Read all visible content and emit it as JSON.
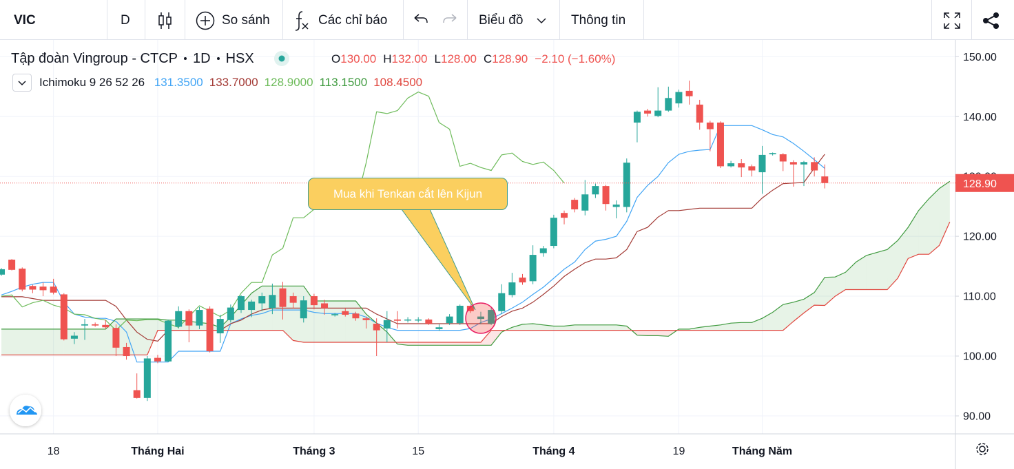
{
  "toolbar": {
    "symbol": "VIC",
    "interval": "D",
    "compare": "So sánh",
    "indicators": "Các chỉ báo",
    "chart_type": "Biểu đồ",
    "info": "Thông tin"
  },
  "chart_data": {
    "type": "candlestick",
    "title": "Tập đoàn Vingroup - CTCP",
    "interval": "1D",
    "exchange": "HSX",
    "ohlc_legend": [
      {
        "key": "O",
        "value": "130.00"
      },
      {
        "key": "H",
        "value": "132.00"
      },
      {
        "key": "L",
        "value": "128.00"
      },
      {
        "key": "C",
        "value": "128.90"
      }
    ],
    "change": "−2.10 (−1.60%)",
    "indicator": {
      "name": "Ichimoku 9 26 52 26",
      "values": [
        "131.3500",
        "133.7000",
        "128.9000",
        "113.1500",
        "108.4500"
      ]
    },
    "annotation": "Mua khi Tenkan cắt lên Kijun",
    "categories": [
      null,
      null,
      null,
      null,
      null,
      "18",
      null,
      null,
      null,
      null,
      null,
      null,
      null,
      null,
      null,
      "Tháng Hai",
      null,
      null,
      null,
      null,
      null,
      null,
      null,
      null,
      null,
      null,
      null,
      null,
      null,
      null,
      "Tháng 3",
      null,
      null,
      null,
      null,
      null,
      null,
      null,
      null,
      null,
      "15",
      null,
      null,
      null,
      null,
      null,
      null,
      null,
      null,
      null,
      null,
      null,
      null,
      "Tháng 4",
      null,
      null,
      null,
      null,
      null,
      null,
      null,
      null,
      null,
      null,
      null,
      "19",
      null,
      null,
      null,
      null,
      null,
      null,
      null,
      "Tháng Năm",
      null,
      null,
      null,
      null,
      null,
      null,
      null,
      null,
      null,
      null,
      null,
      null,
      null,
      null,
      null,
      null,
      null,
      null
    ],
    "open": [
      113.6,
      116.1,
      114.6,
      111.7,
      111.6,
      111.6,
      110.3,
      102.9,
      105.1,
      105.3,
      105.2,
      104.7,
      101.5,
      94.3,
      93.0,
      99.7,
      99.1,
      104.9,
      107.5,
      105.1,
      107.9,
      103.8,
      106.0,
      107.7,
      107.7,
      108.8,
      108.0,
      111.3,
      110.0,
      106.3,
      110.0,
      108.8,
      106.8,
      107.5,
      107.1,
      106.3,
      105.4,
      104.6,
      106.1,
      106.0,
      106.0,
      106.1,
      104.5,
      105.5,
      105.5,
      108.4,
      106.2,
      105.4,
      107.5,
      110.2,
      113.1,
      112.5,
      117.2,
      118.4,
      123.9,
      126.1,
      124.3,
      127.0,
      128.4,
      124.9,
      124.9,
      139.0,
      141.0,
      140.1,
      141.0,
      142.2,
      144.3,
      142.0,
      139.0,
      139.0,
      131.7,
      132.2,
      131.7,
      130.7,
      133.7,
      133.7,
      132.4,
      132.0,
      132.4,
      130.0,
      null,
      null,
      null,
      null,
      null,
      null,
      null,
      null,
      null,
      null,
      null,
      null
    ],
    "high": [
      114.7,
      116.2,
      114.8,
      111.9,
      112.3,
      112.9,
      110.5,
      104.0,
      106.2,
      105.6,
      106.0,
      105.3,
      102.2,
      97.1,
      100.0,
      100.2,
      106.1,
      108.3,
      107.8,
      108.2,
      108.3,
      106.9,
      108.6,
      110.2,
      109.4,
      110.6,
      112.1,
      112.4,
      110.6,
      110.0,
      110.4,
      109.4,
      107.2,
      108.0,
      107.4,
      106.6,
      106.3,
      107.5,
      107.5,
      106.5,
      106.5,
      106.3,
      105.3,
      107.0,
      108.6,
      108.6,
      107.4,
      108.2,
      112.0,
      113.9,
      113.7,
      118.5,
      118.4,
      123.6,
      124.3,
      126.4,
      129.4,
      128.8,
      128.6,
      126.0,
      133.0,
      141.0,
      141.3,
      144.9,
      145.0,
      144.5,
      146.0,
      142.8,
      139.3,
      139.2,
      132.6,
      132.9,
      132.0,
      135.1,
      134.0,
      133.9,
      132.7,
      132.6,
      133.2,
      132.0,
      null,
      null,
      null,
      null,
      null,
      null,
      null,
      null,
      null,
      null,
      null,
      null
    ],
    "low": [
      113.4,
      114.3,
      110.8,
      110.5,
      110.0,
      110.3,
      102.6,
      102.0,
      102.7,
      104.9,
      104.5,
      100.0,
      99.4,
      92.9,
      92.5,
      98.8,
      99.0,
      104.6,
      102.3,
      104.5,
      100.6,
      102.2,
      105.6,
      107.2,
      106.5,
      107.5,
      107.0,
      106.1,
      108.0,
      105.6,
      107.8,
      106.9,
      106.6,
      106.6,
      105.9,
      104.6,
      100.0,
      102.3,
      104.6,
      105.6,
      105.6,
      105.2,
      104.2,
      105.2,
      105.2,
      107.2,
      105.3,
      105.2,
      107.0,
      109.8,
      111.9,
      112.0,
      116.6,
      118.0,
      122.0,
      124.0,
      123.5,
      126.4,
      124.3,
      123.0,
      124.0,
      135.7,
      140.0,
      139.9,
      140.8,
      141.5,
      142.0,
      137.8,
      134.2,
      131.4,
      131.5,
      129.9,
      130.0,
      127.1,
      133.5,
      130.9,
      128.3,
      128.4,
      130.0,
      128.0,
      null,
      null,
      null,
      null,
      null,
      null,
      null,
      null,
      null,
      null,
      null,
      null
    ],
    "close": [
      114.5,
      114.4,
      111.1,
      111.1,
      111.0,
      110.6,
      102.8,
      103.4,
      105.3,
      105.1,
      104.8,
      101.4,
      100.0,
      93.0,
      99.6,
      99.1,
      105.9,
      107.5,
      105.1,
      107.7,
      100.8,
      106.2,
      108.1,
      110.0,
      109.1,
      110.0,
      110.2,
      108.2,
      108.9,
      109.3,
      108.5,
      108.0,
      107.0,
      106.9,
      106.3,
      106.0,
      104.3,
      106.0,
      105.9,
      106.1,
      106.1,
      105.4,
      104.8,
      106.6,
      108.4,
      107.5,
      106.6,
      107.7,
      110.5,
      112.3,
      112.3,
      116.9,
      118.0,
      123.1,
      123.1,
      124.5,
      127.0,
      128.4,
      125.4,
      125.3,
      132.3,
      140.8,
      140.5,
      141.0,
      143.1,
      144.1,
      143.4,
      139.0,
      137.9,
      131.7,
      132.2,
      131.5,
      131.0,
      133.6,
      133.9,
      132.5,
      132.0,
      132.4,
      131.0,
      128.9,
      null,
      null,
      null,
      null,
      null,
      null,
      null,
      null,
      null,
      null,
      null,
      null
    ],
    "up_color": "#26a69a",
    "down_color": "#ef5350",
    "series": [
      {
        "color": "#42a5f5",
        "values": [
          110.2,
          110.8,
          111.5,
          112.0,
          112.3,
          112.3,
          109.0,
          107.0,
          106.5,
          106.3,
          106.3,
          105.8,
          104.0,
          99.0,
          99.0,
          99.0,
          99.0,
          100.8,
          100.8,
          100.8,
          100.8,
          100.8,
          105.4,
          106.2,
          106.8,
          107.1,
          107.7,
          107.7,
          107.7,
          107.7,
          107.3,
          107.1,
          107.1,
          107.1,
          107.1,
          106.5,
          105.5,
          104.8,
          104.3,
          104.3,
          104.3,
          104.3,
          104.3,
          104.3,
          104.3,
          104.6,
          105.6,
          106.2,
          107.1,
          108.0,
          109.0,
          110.3,
          111.5,
          113.0,
          114.5,
          115.7,
          117.8,
          119.2,
          119.5,
          120.0,
          122.5,
          126.5,
          128.5,
          130.0,
          132.3,
          133.7,
          134.2,
          134.4,
          134.5,
          138.5,
          138.5,
          138.5,
          138.5,
          137.8,
          137.0,
          136.6,
          135.5,
          134.2,
          132.8,
          131.35,
          null,
          null,
          null,
          null,
          null,
          null,
          null,
          null,
          null,
          null,
          null,
          null
        ]
      },
      {
        "color": "#a33a35",
        "values": [
          109.9,
          109.9,
          109.9,
          109.6,
          109.3,
          109.3,
          109.3,
          109.3,
          109.3,
          109.3,
          109.3,
          108.3,
          106.0,
          104.0,
          102.8,
          102.5,
          104.3,
          104.3,
          104.3,
          104.3,
          104.3,
          104.3,
          105.4,
          106.0,
          107.0,
          107.7,
          108.0,
          108.0,
          108.0,
          108.0,
          108.0,
          108.0,
          108.0,
          108.0,
          108.0,
          108.0,
          107.0,
          106.2,
          105.4,
          105.4,
          105.4,
          105.4,
          105.4,
          105.4,
          105.4,
          105.4,
          105.4,
          105.4,
          106.6,
          107.5,
          108.0,
          109.0,
          110.3,
          111.7,
          113.3,
          114.5,
          115.6,
          116.2,
          116.2,
          116.4,
          117.8,
          120.8,
          121.5,
          123.2,
          124.3,
          124.3,
          124.5,
          124.7,
          124.7,
          124.7,
          124.7,
          124.7,
          124.7,
          126.4,
          127.7,
          128.8,
          128.9,
          129.0,
          131.4,
          133.7,
          null,
          null,
          null,
          null,
          null,
          null,
          null,
          null,
          null,
          null,
          null,
          null
        ]
      },
      {
        "color": "#6dbb5a",
        "values": [
          110.0,
          110.2,
          108.2,
          108.9,
          109.3,
          108.5,
          108.0,
          107.0,
          106.9,
          106.3,
          106.0,
          104.3,
          106.0,
          105.9,
          106.1,
          106.1,
          105.4,
          104.8,
          106.6,
          108.4,
          107.5,
          106.6,
          107.7,
          110.5,
          112.3,
          112.3,
          116.9,
          118.0,
          123.1,
          123.1,
          124.5,
          127.0,
          128.4,
          125.4,
          125.3,
          132.3,
          140.8,
          140.5,
          141.0,
          143.1,
          144.1,
          143.4,
          139.0,
          137.9,
          131.7,
          132.2,
          131.5,
          131.0,
          133.6,
          133.9,
          132.5,
          132.0,
          132.4,
          131.0,
          128.9,
          null,
          null,
          null,
          null,
          null,
          null,
          null,
          null,
          null,
          null,
          null,
          null,
          null,
          null,
          null,
          null,
          null,
          null,
          null,
          null,
          null,
          null,
          null,
          null,
          null,
          null,
          null,
          null,
          null,
          null,
          null,
          null,
          null,
          null,
          null,
          null,
          null
        ]
      },
      {
        "color": "#3f9a3f",
        "values": [
          104.5,
          104.5,
          104.5,
          104.5,
          104.5,
          104.5,
          104.5,
          104.5,
          104.5,
          104.5,
          104.5,
          106.2,
          106.2,
          106.2,
          106.2,
          106.2,
          106.0,
          106.0,
          105.8,
          105.6,
          105.4,
          104.8,
          106.5,
          108.5,
          110.5,
          111.7,
          111.7,
          111.7,
          111.7,
          111.7,
          109.2,
          109.2,
          109.2,
          109.2,
          109.2,
          107.0,
          105.5,
          104.0,
          102.0,
          101.8,
          101.8,
          101.8,
          101.8,
          101.8,
          101.8,
          101.8,
          101.8,
          101.8,
          104.0,
          104.8,
          105.3,
          105.4,
          105.2,
          105.0,
          105.0,
          105.2,
          105.2,
          105.2,
          105.2,
          105.2,
          105.0,
          103.5,
          103.4,
          103.4,
          103.3,
          104.5,
          104.5,
          104.8,
          105.0,
          105.2,
          105.5,
          105.6,
          105.6,
          106.3,
          107.3,
          108.6,
          109.0,
          109.5,
          110.6,
          113.15,
          113.2,
          114.0,
          115.7,
          116.8,
          117.3,
          117.8,
          119.3,
          121.5,
          124.3,
          126.3,
          128.0,
          129.2
        ]
      },
      {
        "color": "#e0463e",
        "values": [
          100.2,
          100.2,
          100.2,
          100.2,
          100.2,
          100.2,
          100.2,
          100.2,
          100.2,
          100.2,
          100.2,
          100.2,
          100.2,
          100.2,
          100.2,
          104.3,
          104.3,
          104.3,
          104.3,
          104.3,
          104.3,
          104.3,
          104.3,
          104.3,
          104.3,
          104.3,
          104.3,
          104.3,
          102.6,
          102.3,
          102.3,
          102.3,
          102.3,
          102.3,
          102.3,
          102.3,
          102.3,
          102.3,
          102.3,
          102.3,
          102.3,
          102.3,
          102.3,
          102.3,
          102.3,
          102.3,
          102.3,
          104.3,
          104.3,
          104.3,
          104.3,
          104.3,
          104.3,
          104.3,
          104.3,
          104.3,
          104.3,
          104.3,
          104.3,
          104.3,
          104.3,
          104.3,
          104.3,
          104.3,
          104.3,
          104.3,
          104.3,
          104.3,
          104.3,
          104.3,
          104.3,
          104.3,
          104.3,
          104.3,
          104.3,
          104.3,
          105.8,
          107.2,
          108.5,
          108.45,
          110.0,
          111.1,
          111.1,
          111.1,
          111.1,
          111.1,
          113.0,
          116.3,
          117.0,
          117.0,
          118.5,
          122.4
        ]
      }
    ],
    "cloud_up_color": "rgba(67,160,71,0.13)",
    "cloud_down_color": "rgba(239,83,80,0.15)",
    "ylim": [
      87,
      152.8
    ],
    "yticks": [
      {
        "value": 90,
        "label": "90.00"
      },
      {
        "value": 100,
        "label": "100.00"
      },
      {
        "value": 110,
        "label": "110.00"
      },
      {
        "value": 120,
        "label": "120.00"
      },
      {
        "value": 130,
        "label": "130.00"
      },
      {
        "value": 140,
        "label": "140.00"
      },
      {
        "value": 150,
        "label": "150.00"
      }
    ],
    "grid": true,
    "last_price": {
      "value": 128.9,
      "label": "128.90"
    }
  }
}
